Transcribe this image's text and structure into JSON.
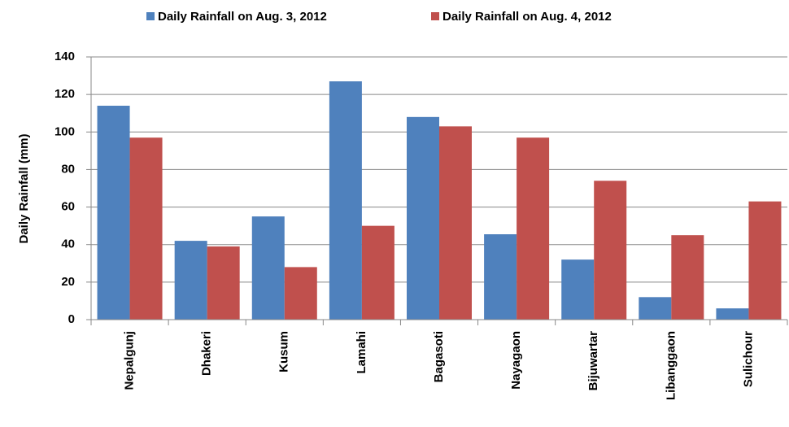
{
  "chart_data": {
    "type": "bar",
    "categories": [
      "Nepalgunj",
      "Dhakeri",
      "Kusum",
      "Lamahi",
      "Bagasoti",
      "Nayagaon",
      "Bijuwartar",
      "Libanggaon",
      "Sulichour"
    ],
    "series": [
      {
        "name": "Daily Rainfall on Aug. 3, 2012",
        "color": "#4f81bd",
        "values": [
          114,
          42,
          55,
          127,
          108,
          45.5,
          32,
          12,
          6
        ]
      },
      {
        "name": "Daily Rainfall on Aug. 4, 2012",
        "color": "#c0504d",
        "values": [
          97,
          39,
          28,
          50,
          103,
          97,
          74,
          45,
          63
        ]
      }
    ],
    "y_label": "Daily Rainfall (mm)",
    "ylim": [
      0,
      140
    ],
    "yticks": [
      0,
      20,
      40,
      60,
      80,
      100,
      120,
      140
    ],
    "grid": true,
    "legend": "top"
  }
}
